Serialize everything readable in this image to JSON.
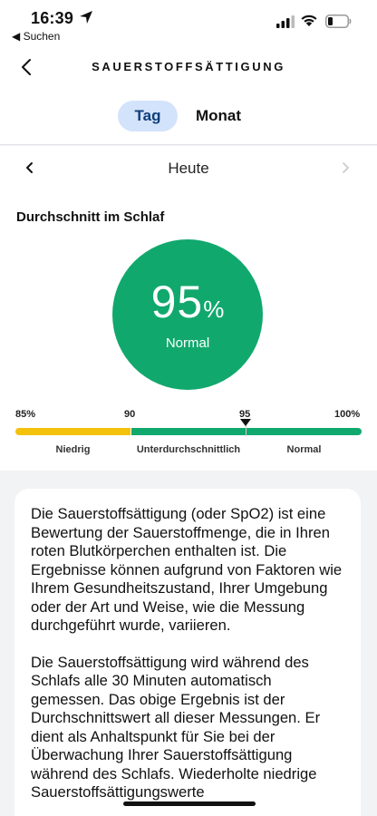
{
  "status_bar": {
    "time": "16:39",
    "back_app": "◀ Suchen",
    "icons": [
      "location-arrow-icon",
      "signal-icon",
      "wifi-icon",
      "battery-icon"
    ]
  },
  "header": {
    "title": "SAUERSTOFFSÄTTIGUNG",
    "back_icon": "chevron-left-icon"
  },
  "tabs": [
    {
      "label": "Tag",
      "selected": true
    },
    {
      "label": "Monat",
      "selected": false
    }
  ],
  "date_nav": {
    "label": "Heute",
    "prev_icon": "chevron-left-icon",
    "next_icon": "chevron-right-icon"
  },
  "summary": {
    "title": "Durchschnitt im Schlaf",
    "value": "95",
    "unit": "%",
    "status": "Normal"
  },
  "scale": {
    "ticks": [
      "85%",
      "90",
      "95",
      "100%"
    ],
    "zones": [
      "Niedrig",
      "Unterdurchschnittlich",
      "Normal"
    ],
    "marker_value": 95,
    "colors": {
      "low": "#f4c20d",
      "mid": "#11a86d",
      "high": "#11a86d"
    }
  },
  "info": {
    "paragraphs": [
      "Die Sauerstoffsättigung (oder SpO2) ist eine Bewertung der Sauerstoffmenge, die in Ihren roten Blutkörperchen enthalten ist. Die Ergebnisse können aufgrund von Faktoren wie Ihrem Gesundheitszustand, Ihrer Umgebung oder der Art und Weise, wie die Messung durchgeführt wurde, variieren.",
      "Die Sauerstoffsättigung wird während des Schlafs alle 30 Minuten automatisch gemessen. Das obige Ergebnis ist der Durchschnittswert all dieser Messungen. Er dient als Anhaltspunkt für Sie bei der Überwachung Ihrer Sauerstoffsättigung während des Schlafs. Wiederholte niedrige Sauerstoffsättigungswerte"
    ]
  },
  "colors": {
    "accent_green": "#11a86d",
    "tab_selected_bg": "#d3e3fb",
    "tab_selected_text": "#0e3f7a"
  }
}
